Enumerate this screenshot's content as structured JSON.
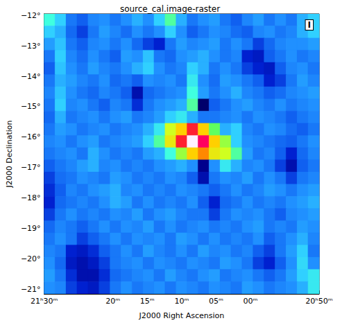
{
  "chart_data": {
    "type": "heatmap",
    "title": "source_cal.image-raster",
    "x_label": "J2000 Right Ascension",
    "y_label": "J2000 Declination",
    "annotations": [
      "I"
    ],
    "grid": false,
    "xlim": [
      90,
      50
    ],
    "xticks": [
      {
        "value": 90,
        "label": "21ʰ30ᵐ"
      },
      {
        "value": 80,
        "label": "20ᵐ"
      },
      {
        "value": 75,
        "label": "15ᵐ"
      },
      {
        "value": 70,
        "label": "10ᵐ"
      },
      {
        "value": 65,
        "label": "05ᵐ"
      },
      {
        "value": 60,
        "label": "00ᵐ"
      },
      {
        "value": 50,
        "label": "20ʰ50ᵐ"
      }
    ],
    "ylim": [
      -21.15,
      -11.95
    ],
    "yticks": [
      {
        "value": -12,
        "label": "−12°"
      },
      {
        "value": -13,
        "label": "−13°"
      },
      {
        "value": -14,
        "label": "−14°"
      },
      {
        "value": -15,
        "label": "−15°"
      },
      {
        "value": -16,
        "label": "−16°"
      },
      {
        "value": -17,
        "label": "−17°"
      },
      {
        "value": -18,
        "label": "−18°"
      },
      {
        "value": -19,
        "label": "−19°"
      },
      {
        "value": -20,
        "label": "−20°"
      },
      {
        "value": -21,
        "label": "−21°"
      }
    ],
    "x": [
      89.2,
      87.6,
      86.0,
      84.4,
      82.8,
      81.2,
      79.6,
      78.0,
      76.4,
      74.8,
      73.2,
      71.6,
      70.0,
      68.4,
      66.8,
      65.2,
      63.6,
      62.0,
      60.4,
      58.8,
      57.2,
      55.6,
      54.0,
      52.4,
      50.8
    ],
    "y": [
      -12.15,
      -12.55,
      -12.95,
      -13.35,
      -13.75,
      -14.15,
      -14.55,
      -14.95,
      -15.35,
      -15.75,
      -16.15,
      -16.55,
      -16.95,
      -17.35,
      -17.75,
      -18.15,
      -18.55,
      -18.95,
      -19.35,
      -19.75,
      -20.15,
      -20.55,
      -20.95
    ],
    "zlim": [
      -0.3,
      1.0
    ],
    "z": [
      [
        0.3,
        0.2,
        0.05,
        0.0,
        0.08,
        0.1,
        0.05,
        0.1,
        0.15,
        0.1,
        0.2,
        0.35,
        0.15,
        0.05,
        0.1,
        0.12,
        0.05,
        0.0,
        0.08,
        0.12,
        0.05,
        0.1,
        0.05,
        0.15,
        0.2
      ],
      [
        0.2,
        0.15,
        0.02,
        -0.05,
        0.05,
        0.12,
        0.08,
        0.03,
        0.1,
        0.05,
        0.1,
        0.2,
        0.1,
        0.0,
        0.05,
        0.1,
        0.08,
        0.03,
        0.0,
        0.08,
        0.1,
        0.05,
        0.08,
        0.15,
        0.2
      ],
      [
        0.12,
        0.18,
        0.05,
        0.0,
        0.08,
        0.1,
        0.05,
        0.1,
        0.02,
        -0.05,
        -0.1,
        0.05,
        0.12,
        0.08,
        0.1,
        0.12,
        0.05,
        0.1,
        0.05,
        -0.05,
        0.02,
        0.08,
        0.1,
        0.1,
        0.12
      ],
      [
        0.05,
        0.2,
        0.08,
        0.03,
        0.1,
        0.05,
        0.0,
        0.12,
        0.1,
        0.18,
        0.05,
        0.02,
        0.1,
        0.12,
        0.15,
        0.1,
        0.05,
        0.08,
        -0.1,
        -0.12,
        0.0,
        0.05,
        0.1,
        0.05,
        0.08
      ],
      [
        0.0,
        0.18,
        0.1,
        0.05,
        0.12,
        0.08,
        0.05,
        0.1,
        0.15,
        0.2,
        0.1,
        0.05,
        0.08,
        0.2,
        0.15,
        0.05,
        0.1,
        0.05,
        -0.05,
        -0.1,
        -0.12,
        0.0,
        0.08,
        0.1,
        0.05
      ],
      [
        0.05,
        0.15,
        0.12,
        0.08,
        0.05,
        0.1,
        0.02,
        0.05,
        0.0,
        0.1,
        0.08,
        0.1,
        0.05,
        0.25,
        0.1,
        0.03,
        0.12,
        0.1,
        0.05,
        0.0,
        -0.1,
        -0.05,
        0.05,
        0.12,
        0.08
      ],
      [
        0.08,
        0.18,
        0.1,
        0.05,
        0.02,
        0.08,
        0.05,
        0.0,
        -0.15,
        0.02,
        0.05,
        0.08,
        0.1,
        0.3,
        0.12,
        0.05,
        0.1,
        0.15,
        0.08,
        0.05,
        0.0,
        0.03,
        0.08,
        0.1,
        0.12
      ],
      [
        0.05,
        0.2,
        0.08,
        0.1,
        0.05,
        0.0,
        0.08,
        0.05,
        -0.08,
        0.05,
        0.1,
        0.12,
        0.15,
        0.35,
        -0.25,
        0.0,
        0.05,
        0.1,
        0.12,
        0.08,
        0.05,
        0.1,
        0.05,
        0.08,
        0.1
      ],
      [
        0.02,
        0.15,
        0.05,
        0.08,
        0.1,
        0.05,
        0.1,
        0.12,
        0.05,
        0.08,
        0.12,
        0.2,
        0.25,
        0.15,
        0.05,
        0.05,
        0.08,
        0.1,
        0.05,
        0.1,
        0.08,
        0.05,
        0.0,
        0.05,
        0.08
      ],
      [
        0.05,
        0.12,
        0.1,
        0.05,
        0.08,
        0.1,
        0.05,
        0.08,
        0.1,
        0.15,
        0.25,
        0.5,
        0.6,
        0.75,
        0.6,
        0.4,
        0.15,
        0.2,
        0.08,
        0.05,
        0.1,
        0.08,
        0.03,
        0.0,
        0.05
      ],
      [
        0.08,
        0.1,
        0.05,
        0.1,
        0.12,
        0.05,
        0.08,
        0.1,
        0.12,
        0.2,
        0.35,
        0.55,
        0.75,
        1.0,
        0.8,
        0.6,
        0.45,
        0.2,
        0.1,
        0.08,
        0.05,
        0.02,
        0.0,
        0.05,
        0.1
      ],
      [
        0.05,
        0.08,
        0.1,
        0.05,
        0.15,
        0.1,
        0.05,
        0.08,
        0.05,
        0.12,
        0.15,
        0.3,
        0.45,
        0.6,
        0.65,
        0.55,
        0.5,
        0.35,
        0.12,
        0.05,
        0.08,
        0.0,
        -0.1,
        0.02,
        0.08
      ],
      [
        0.0,
        0.05,
        0.08,
        0.12,
        0.15,
        0.08,
        0.1,
        0.05,
        0.08,
        0.05,
        0.1,
        0.12,
        0.15,
        0.1,
        -0.2,
        0.1,
        0.25,
        0.15,
        0.08,
        0.1,
        0.05,
        -0.05,
        -0.15,
        0.0,
        0.05
      ],
      [
        -0.05,
        0.03,
        0.05,
        0.1,
        0.08,
        0.05,
        0.12,
        0.1,
        0.05,
        0.08,
        0.05,
        0.1,
        0.08,
        0.0,
        -0.15,
        0.05,
        0.1,
        0.08,
        0.12,
        0.05,
        0.1,
        0.05,
        -0.05,
        0.05,
        0.08
      ],
      [
        -0.08,
        0.0,
        0.08,
        0.05,
        0.1,
        0.12,
        0.15,
        0.08,
        0.1,
        0.05,
        0.08,
        0.05,
        0.1,
        0.08,
        0.05,
        0.0,
        0.05,
        0.1,
        0.05,
        0.08,
        0.12,
        0.1,
        0.05,
        0.1,
        0.12
      ],
      [
        -0.1,
        0.02,
        0.05,
        0.08,
        0.05,
        0.1,
        0.15,
        0.12,
        0.05,
        0.1,
        0.05,
        0.08,
        0.05,
        0.1,
        0.0,
        -0.1,
        0.02,
        0.05,
        0.1,
        0.05,
        0.08,
        0.05,
        0.1,
        0.12,
        0.15
      ],
      [
        -0.05,
        0.05,
        0.1,
        0.05,
        0.08,
        0.05,
        0.1,
        0.08,
        0.12,
        0.05,
        0.1,
        0.12,
        0.08,
        0.05,
        0.05,
        -0.05,
        0.05,
        0.1,
        0.08,
        0.1,
        0.05,
        0.0,
        0.08,
        0.1,
        0.12
      ],
      [
        0.02,
        0.08,
        0.05,
        0.0,
        0.05,
        0.1,
        0.05,
        0.1,
        0.08,
        0.12,
        0.05,
        0.1,
        0.05,
        0.08,
        0.1,
        0.05,
        0.08,
        0.05,
        0.1,
        0.12,
        0.05,
        0.08,
        0.05,
        0.12,
        0.1
      ],
      [
        0.05,
        0.1,
        0.05,
        -0.05,
        0.0,
        0.05,
        0.1,
        0.05,
        0.1,
        0.08,
        0.1,
        0.05,
        0.12,
        0.1,
        0.05,
        0.1,
        0.05,
        0.08,
        0.05,
        0.1,
        0.0,
        0.05,
        0.1,
        0.15,
        0.08
      ],
      [
        0.08,
        0.05,
        -0.1,
        -0.12,
        -0.08,
        0.0,
        0.05,
        0.1,
        0.05,
        0.12,
        0.08,
        0.05,
        0.1,
        0.05,
        0.12,
        0.08,
        0.1,
        0.05,
        0.08,
        0.0,
        -0.05,
        0.05,
        0.12,
        0.2,
        0.05
      ],
      [
        0.1,
        0.02,
        -0.12,
        -0.15,
        -0.12,
        -0.05,
        0.05,
        0.08,
        0.1,
        0.05,
        0.1,
        0.08,
        0.05,
        0.1,
        0.08,
        0.05,
        0.12,
        0.1,
        0.05,
        -0.05,
        -0.1,
        0.0,
        0.1,
        0.22,
        0.1
      ],
      [
        0.12,
        0.05,
        -0.08,
        -0.15,
        -0.15,
        -0.08,
        0.02,
        0.05,
        0.08,
        0.1,
        0.05,
        0.12,
        0.08,
        0.05,
        0.1,
        0.12,
        0.05,
        0.08,
        0.1,
        0.05,
        0.0,
        0.05,
        0.12,
        0.2,
        0.25
      ],
      [
        0.1,
        0.08,
        -0.05,
        -0.1,
        -0.12,
        -0.05,
        0.05,
        0.1,
        0.05,
        0.08,
        0.1,
        0.05,
        0.1,
        0.08,
        0.05,
        0.1,
        0.08,
        0.05,
        0.12,
        0.1,
        0.05,
        0.08,
        0.1,
        0.15,
        0.25
      ]
    ]
  }
}
